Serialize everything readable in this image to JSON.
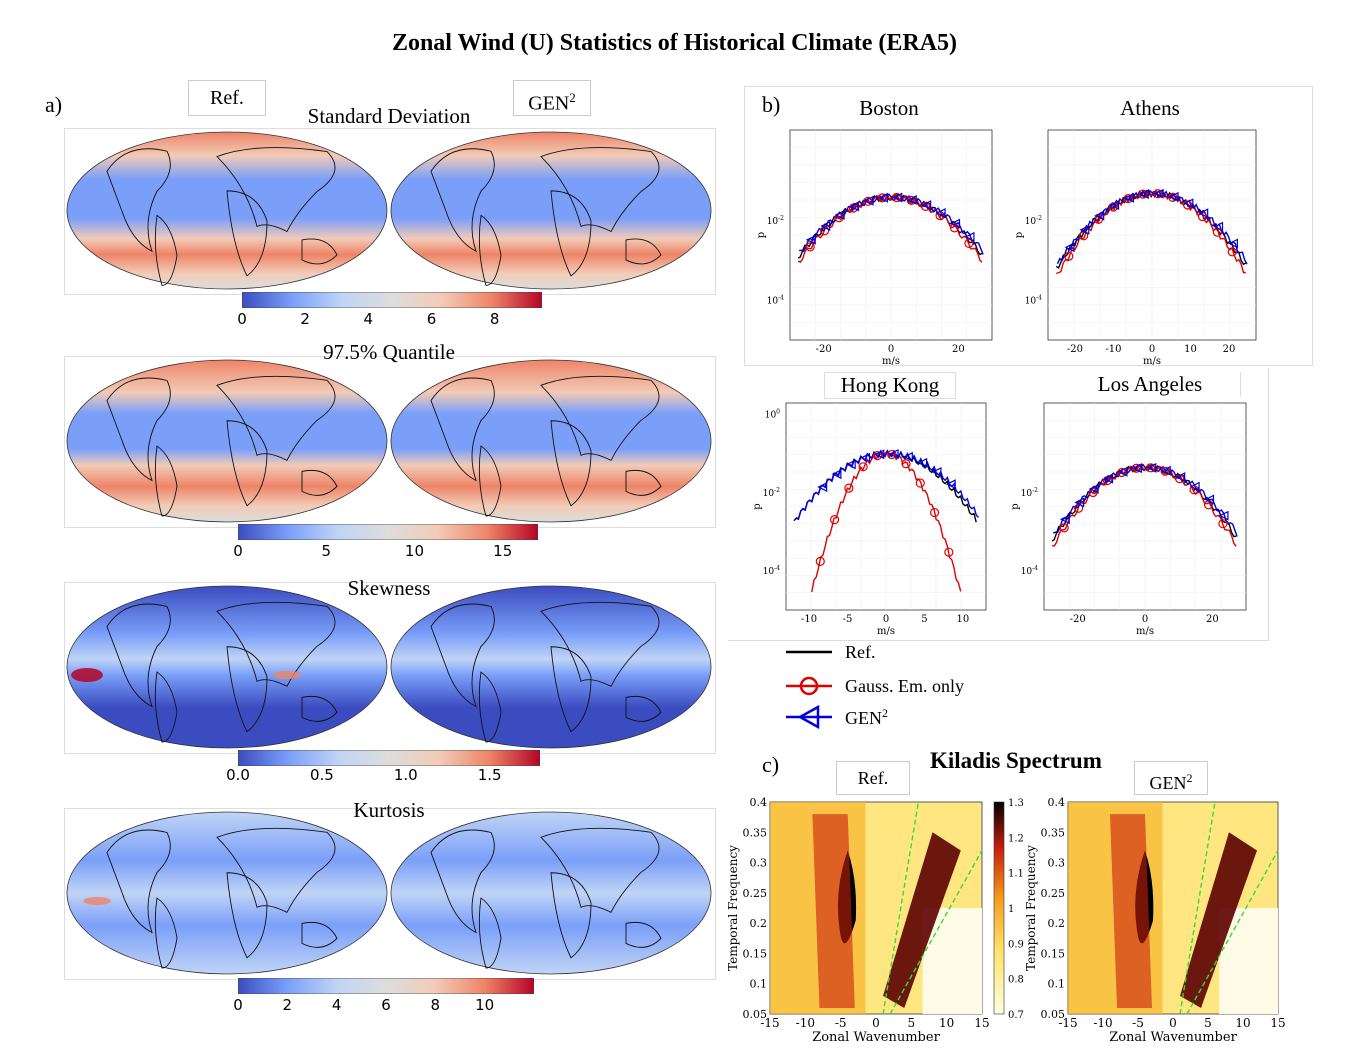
{
  "figure": {
    "title": "Zonal Wind (U) Statistics of Historical Climate (ERA5)"
  },
  "panel_a": {
    "letter": "a)",
    "ref_label": "Ref.",
    "gen_label": "GEN",
    "gen_sup": "2",
    "rows": [
      {
        "title": "Standard Deviation",
        "ticks": [
          "0",
          "2",
          "4",
          "6",
          "8"
        ],
        "vmax": 9.5
      },
      {
        "title": "97.5% Quantile",
        "ticks": [
          "0",
          "5",
          "10",
          "15"
        ],
        "vmax": 17
      },
      {
        "title": "Skewness",
        "ticks": [
          "0.0",
          "0.5",
          "1.0",
          "1.5"
        ],
        "vmax": 1.8
      },
      {
        "title": "Kurtosis",
        "ticks": [
          "0",
          "2",
          "4",
          "6",
          "8",
          "10"
        ],
        "vmax": 12
      }
    ],
    "colormap": [
      "#3b4cc0",
      "#7b9ff9",
      "#c0d4f5",
      "#dddddd",
      "#f2cbb7",
      "#ee8468",
      "#b40426"
    ]
  },
  "panel_b": {
    "letter": "b)",
    "ylabel": "p",
    "xlabel": "m/s",
    "cities": [
      {
        "name": "Boston",
        "xticks": [
          "-20",
          "0",
          "20"
        ],
        "yticks": [
          "10",
          "10"
        ],
        "yexp": [
          "-2",
          "-4"
        ]
      },
      {
        "name": "Athens",
        "xticks": [
          "-20",
          "-10",
          "0",
          "10",
          "20"
        ],
        "yticks": [
          "10",
          "10"
        ],
        "yexp": [
          "-2",
          "-4"
        ]
      },
      {
        "name": "Hong Kong",
        "xticks": [
          "-10",
          "-5",
          "0",
          "5",
          "10"
        ],
        "yticks": [
          "10",
          "10",
          "10"
        ],
        "yexp": [
          "0",
          "-2",
          "-4"
        ]
      },
      {
        "name": "Los Angeles",
        "xticks": [
          "-20",
          "0",
          "20"
        ],
        "yticks": [
          "10",
          "10"
        ],
        "yexp": [
          "-2",
          "-4"
        ]
      }
    ],
    "legend": [
      {
        "label": "Ref.",
        "color": "#000000"
      },
      {
        "label": "Gauss. Em. only",
        "color": "#e00000"
      },
      {
        "label": "GEN",
        "sup": "2",
        "color": "#0000e0"
      }
    ]
  },
  "panel_c": {
    "letter": "c)",
    "title": "Kiladis Spectrum",
    "ref_label": "Ref.",
    "gen_label": "GEN",
    "gen_sup": "2",
    "xlabel": "Zonal Wavenumber",
    "ylabel": "Temporal Frequency",
    "xticks": [
      "-15",
      "-10",
      "-5",
      "0",
      "5",
      "10",
      "15"
    ],
    "yticks": [
      "0.4",
      "0.35",
      "0.3",
      "0.25",
      "0.2",
      "0.15",
      "0.1",
      "0.05"
    ],
    "cbar_ticks": [
      "1.3",
      "1.2",
      "1.1",
      "1",
      "0.9",
      "0.8",
      "0.7"
    ]
  }
}
